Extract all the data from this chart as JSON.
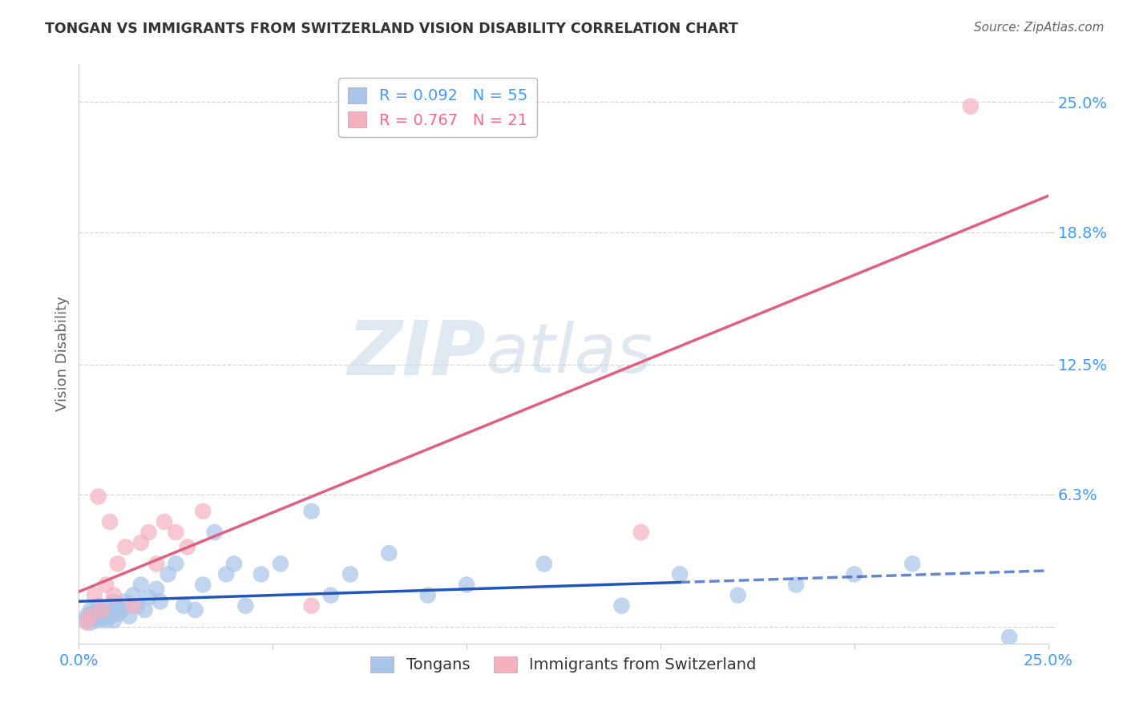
{
  "title": "TONGAN VS IMMIGRANTS FROM SWITZERLAND VISION DISABILITY CORRELATION CHART",
  "source": "Source: ZipAtlas.com",
  "ylabel": "Vision Disability",
  "xlim": [
    0.0,
    0.25
  ],
  "ylim": [
    -0.008,
    0.268
  ],
  "yticks": [
    0.0,
    0.063,
    0.125,
    0.188,
    0.25
  ],
  "ytick_labels": [
    "",
    "6.3%",
    "12.5%",
    "18.8%",
    "25.0%"
  ],
  "xticks": [
    0.0,
    0.05,
    0.1,
    0.15,
    0.2,
    0.25
  ],
  "xtick_labels": [
    "0.0%",
    "",
    "",
    "",
    "",
    "25.0%"
  ],
  "grid_color": "#cccccc",
  "background_color": "#ffffff",
  "tongan_color": "#a8c4e8",
  "swiss_color": "#f5b0c0",
  "tongan_line_color": "#2255bb",
  "swiss_line_color": "#e06080",
  "legend_R_tongan": "0.092",
  "legend_N_tongan": "55",
  "legend_R_swiss": "0.767",
  "legend_N_swiss": "21",
  "tongan_x": [
    0.002,
    0.002,
    0.003,
    0.003,
    0.003,
    0.004,
    0.004,
    0.005,
    0.005,
    0.005,
    0.006,
    0.006,
    0.007,
    0.007,
    0.008,
    0.008,
    0.009,
    0.009,
    0.01,
    0.01,
    0.011,
    0.012,
    0.013,
    0.014,
    0.015,
    0.016,
    0.017,
    0.018,
    0.02,
    0.021,
    0.023,
    0.025,
    0.027,
    0.03,
    0.032,
    0.035,
    0.038,
    0.04,
    0.043,
    0.047,
    0.052,
    0.06,
    0.065,
    0.07,
    0.08,
    0.09,
    0.1,
    0.12,
    0.14,
    0.155,
    0.17,
    0.185,
    0.2,
    0.215,
    0.24
  ],
  "tongan_y": [
    0.005,
    0.003,
    0.006,
    0.002,
    0.008,
    0.004,
    0.007,
    0.003,
    0.005,
    0.01,
    0.004,
    0.008,
    0.003,
    0.006,
    0.005,
    0.01,
    0.003,
    0.012,
    0.006,
    0.009,
    0.008,
    0.012,
    0.005,
    0.015,
    0.01,
    0.02,
    0.008,
    0.014,
    0.018,
    0.012,
    0.025,
    0.03,
    0.01,
    0.008,
    0.02,
    0.045,
    0.025,
    0.03,
    0.01,
    0.025,
    0.03,
    0.055,
    0.015,
    0.025,
    0.035,
    0.015,
    0.02,
    0.03,
    0.01,
    0.025,
    0.015,
    0.02,
    0.025,
    0.03,
    -0.005
  ],
  "swiss_x": [
    0.002,
    0.003,
    0.004,
    0.005,
    0.006,
    0.007,
    0.008,
    0.009,
    0.01,
    0.012,
    0.014,
    0.016,
    0.018,
    0.02,
    0.022,
    0.025,
    0.028,
    0.032,
    0.06,
    0.145,
    0.23
  ],
  "swiss_y": [
    0.002,
    0.005,
    0.015,
    0.062,
    0.008,
    0.02,
    0.05,
    0.015,
    0.03,
    0.038,
    0.01,
    0.04,
    0.045,
    0.03,
    0.05,
    0.045,
    0.038,
    0.055,
    0.01,
    0.045,
    0.248
  ]
}
